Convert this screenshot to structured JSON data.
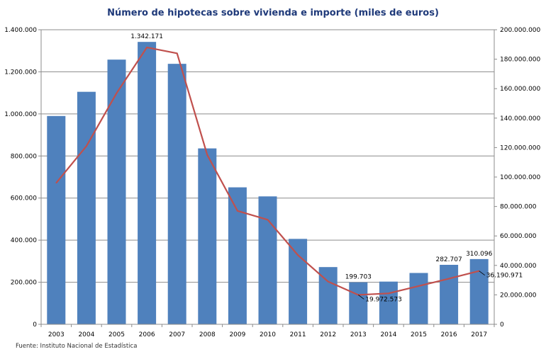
{
  "chart_data": {
    "type": "bar",
    "title": "Número de hipotecas sobre vivienda e importe (miles de euros)",
    "categories": [
      "2003",
      "2004",
      "2005",
      "2006",
      "2007",
      "2008",
      "2009",
      "2010",
      "2011",
      "2012",
      "2013",
      "2014",
      "2015",
      "2016",
      "2017"
    ],
    "series": [
      {
        "type": "bar",
        "axis": "left",
        "color": "#4f81bd",
        "values": [
          990000,
          1105000,
          1258000,
          1342171,
          1238000,
          836000,
          651000,
          608000,
          406000,
          272000,
          199703,
          203000,
          244000,
          282707,
          310096
        ]
      },
      {
        "type": "line",
        "axis": "right",
        "color": "#c0504d",
        "values": [
          96000000,
          121000000,
          157000000,
          188000000,
          184000000,
          115000000,
          77000000,
          71000000,
          47000000,
          29000000,
          19972573,
          21000000,
          26000000,
          31000000,
          36190971
        ]
      }
    ],
    "y_left": {
      "min": 0,
      "max": 1400000,
      "ticks": [
        "0",
        "200.000",
        "400.000",
        "600.000",
        "800.000",
        "1.000.000",
        "1.200.000",
        "1.400.000"
      ]
    },
    "y_right": {
      "min": 0,
      "max": 200000000,
      "ticks": [
        "0",
        "20.000.000",
        "40.000.000",
        "60.000.000",
        "80.000.000",
        "100.000.000",
        "120.000.000",
        "140.000.000",
        "160.000.000",
        "180.000.000",
        "200.000.000"
      ]
    },
    "bar_labels": [
      {
        "index": 3,
        "text": "1.342.171"
      },
      {
        "index": 10,
        "text": "199.703"
      },
      {
        "index": 13,
        "text": "282.707"
      },
      {
        "index": 14,
        "text": "310.096"
      }
    ],
    "line_labels": [
      {
        "index": 10,
        "text": "19.972.573"
      },
      {
        "index": 14,
        "text": "36.190.971"
      }
    ],
    "grid": true,
    "legend": "none"
  },
  "source": "Fuente:  Instituto Nacional de Estadística"
}
